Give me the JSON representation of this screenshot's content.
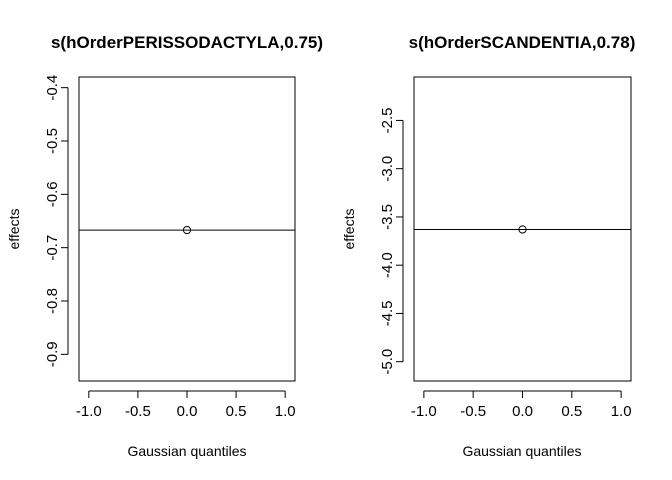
{
  "chart_data": [
    {
      "type": "scatter",
      "title": "s(hOrderPERISSODACTYLA,0.75)",
      "xlabel": "Gaussian quantiles",
      "ylabel": "effects",
      "xlim": [
        -1.1,
        1.1
      ],
      "ylim": [
        -0.95,
        -0.38
      ],
      "x_ticks": [
        -1.0,
        -0.5,
        0.0,
        0.5,
        1.0
      ],
      "x_tick_labels": [
        "-1.0",
        "-0.5",
        "0.0",
        "0.5",
        "1.0"
      ],
      "y_ticks": [
        -0.9,
        -0.8,
        -0.7,
        -0.6,
        -0.5,
        -0.4
      ],
      "y_tick_labels": [
        "-0.9",
        "-0.8",
        "-0.7",
        "-0.6",
        "-0.5",
        "-0.4"
      ],
      "points": [
        {
          "x": 0.0,
          "y": -0.667
        }
      ],
      "hline": -0.667
    },
    {
      "type": "scatter",
      "title": "s(hOrderSCANDENTIA,0.78)",
      "xlabel": "Gaussian quantiles",
      "ylabel": "effects",
      "xlim": [
        -1.1,
        1.1
      ],
      "ylim": [
        -5.2,
        -2.05
      ],
      "x_ticks": [
        -1.0,
        -0.5,
        0.0,
        0.5,
        1.0
      ],
      "x_tick_labels": [
        "-1.0",
        "-0.5",
        "0.0",
        "0.5",
        "1.0"
      ],
      "y_ticks": [
        -5.0,
        -4.5,
        -4.0,
        -3.5,
        -3.0,
        -2.5
      ],
      "y_tick_labels": [
        "-5.0",
        "-4.5",
        "-4.0",
        "-3.5",
        "-3.0",
        "-2.5"
      ],
      "points": [
        {
          "x": 0.0,
          "y": -3.63
        }
      ],
      "hline": -3.63
    }
  ]
}
